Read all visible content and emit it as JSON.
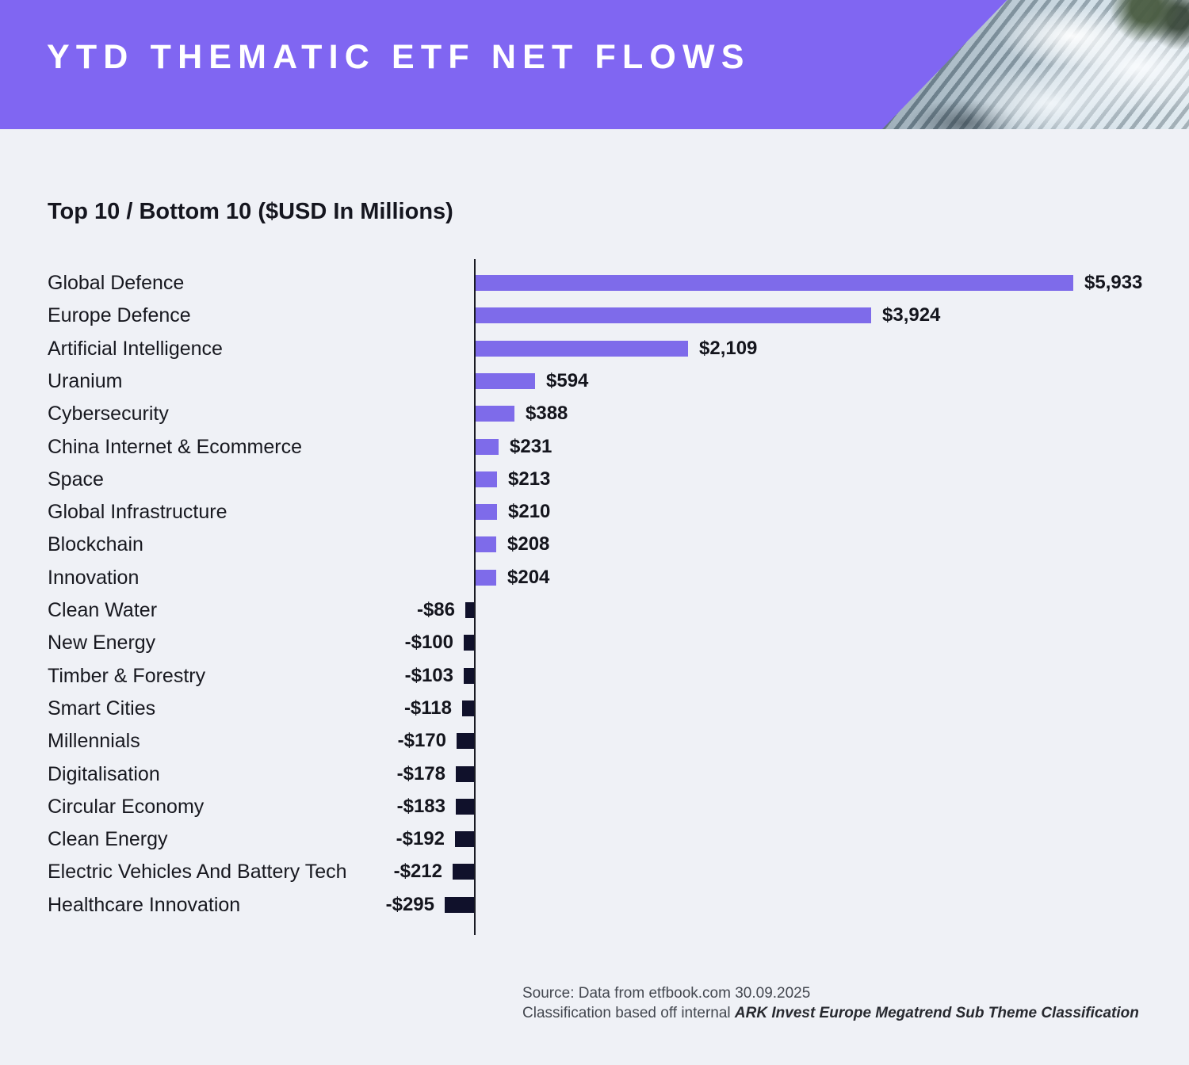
{
  "header": {
    "title": "YTD THEMATIC ETF NET FLOWS"
  },
  "colors": {
    "banner_purple": "#8066F2",
    "background": "#EFF1F6",
    "positive_bar": "#7E6BEA",
    "negative_bar": "#10112B",
    "axis": "#1A1B24",
    "text": "#15161F"
  },
  "chart_data": {
    "type": "bar",
    "orientation": "horizontal",
    "title": "Top 10 / Bottom 10 ($USD In Millions)",
    "units": "$USD millions",
    "legend": "none",
    "grid": false,
    "zero_baseline": true,
    "categories": [
      "Global Defence",
      "Europe Defence",
      "Artificial Intelligence",
      "Uranium",
      "Cybersecurity",
      "China Internet & Ecommerce",
      "Space",
      "Global Infrastructure",
      "Blockchain",
      "Innovation",
      "Clean Water",
      "New Energy",
      "Timber & Forestry",
      "Smart Cities",
      "Millennials",
      "Digitalisation",
      "Circular Economy",
      "Clean Energy",
      "Electric Vehicles And Battery Tech",
      "Healthcare Innovation"
    ],
    "values": [
      5933,
      3924,
      2109,
      594,
      388,
      231,
      213,
      210,
      208,
      204,
      -86,
      -100,
      -103,
      -118,
      -170,
      -178,
      -183,
      -192,
      -212,
      -295
    ],
    "value_labels": [
      "$5,933",
      "$3,924",
      "$2,109",
      "$594",
      "$388",
      "$231",
      "$213",
      "$210",
      "$208",
      "$204",
      "-$86",
      "-$100",
      "-$103",
      "-$118",
      "-$170",
      "-$178",
      "-$183",
      "-$192",
      "-$212",
      "-$295"
    ]
  },
  "footer": {
    "source_line": "Source: Data from etfbook.com 30.09.2025",
    "classification_prefix": "Classification based off internal ",
    "classification_italic": "ARK Invest Europe Megatrend Sub Theme Classification"
  }
}
